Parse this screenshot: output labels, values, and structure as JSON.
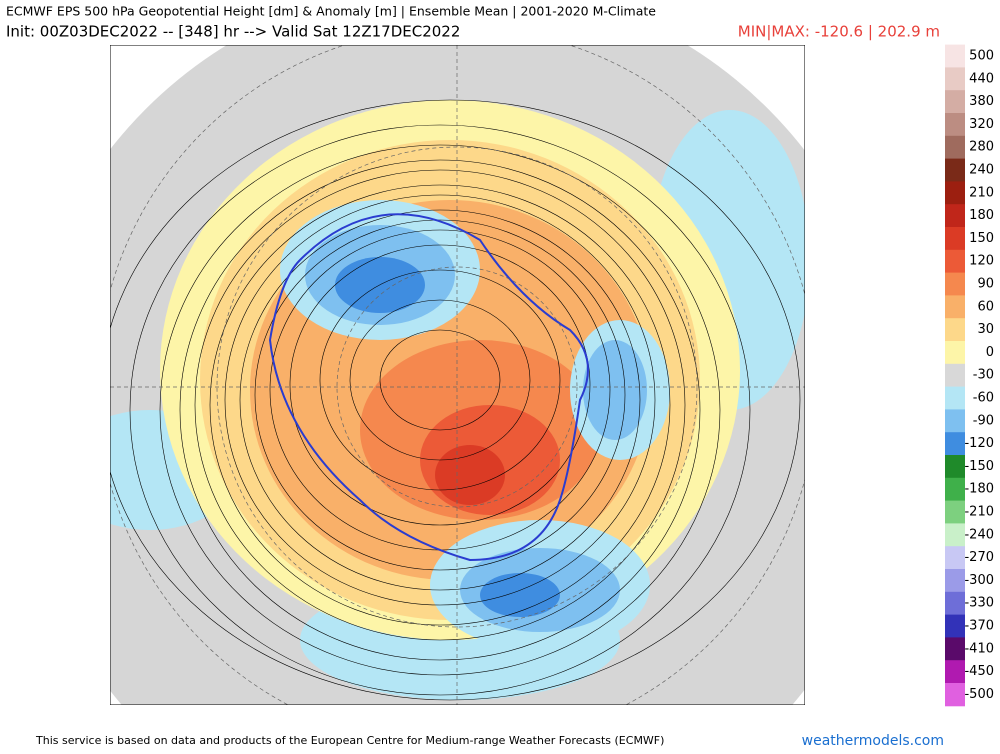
{
  "header": {
    "title": "ECMWF EPS 500 hPa Geopotential Height [dm] & Anomaly [m] | Ensemble Mean | 2001-2020 M-Climate",
    "init": "Init: 00Z03DEC2022 -- [348] hr --> Valid Sat 12Z17DEC2022",
    "minmax": "MIN|MAX: -120.6 | 202.9 m"
  },
  "legend": {
    "entries": [
      {
        "label": 500,
        "color": "#f7e4e4"
      },
      {
        "label": 440,
        "color": "#e8cbc5"
      },
      {
        "label": 380,
        "color": "#d4ada4"
      },
      {
        "label": 320,
        "color": "#bc8d82"
      },
      {
        "label": 280,
        "color": "#9f6b5e"
      },
      {
        "label": 240,
        "color": "#7a2a18"
      },
      {
        "label": 210,
        "color": "#9c1f10"
      },
      {
        "label": 180,
        "color": "#c0261a"
      },
      {
        "label": 150,
        "color": "#db3b25"
      },
      {
        "label": 120,
        "color": "#ec5a37"
      },
      {
        "label": 90,
        "color": "#f5884e"
      },
      {
        "label": 60,
        "color": "#f9b069"
      },
      {
        "label": 30,
        "color": "#fdd88a"
      },
      {
        "label": 0,
        "color": "#fdf5a8"
      },
      {
        "label": -30,
        "color": "#d8d8d8"
      },
      {
        "label": -60,
        "color": "#b4e6f5"
      },
      {
        "label": -90,
        "color": "#7ec0f0"
      },
      {
        "label": -120,
        "color": "#3f8de0"
      },
      {
        "label": -150,
        "color": "#1f8a2a"
      },
      {
        "label": -180,
        "color": "#3fb04a"
      },
      {
        "label": -210,
        "color": "#7dd07f"
      },
      {
        "label": -240,
        "color": "#c9f0c9"
      },
      {
        "label": -270,
        "color": "#c8c8f4"
      },
      {
        "label": -300,
        "color": "#9b9be8"
      },
      {
        "label": -330,
        "color": "#6e6ed8"
      },
      {
        "label": -370,
        "color": "#3232b8"
      },
      {
        "label": -410,
        "color": "#5a0a6a"
      },
      {
        "label": -450,
        "color": "#b01ab0"
      },
      {
        "label": -500,
        "color": "#e060e0"
      }
    ]
  },
  "footer": {
    "credit": "This service is based on data and products of the European Centre for Medium-range Weather Forecasts (ECMWF)",
    "site": "weathermodels.com"
  }
}
